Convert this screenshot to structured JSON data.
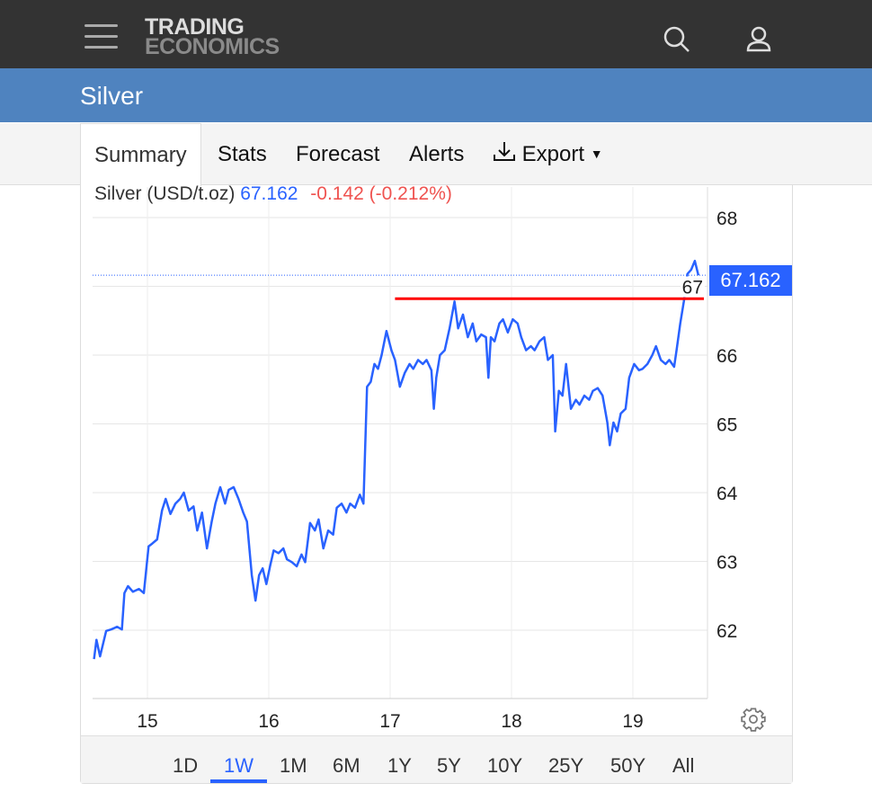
{
  "header": {
    "logo_line1": "TRADING",
    "logo_line2": "ECONOMICS"
  },
  "title": "Silver",
  "tabs": [
    "Summary",
    "Stats",
    "Forecast",
    "Alerts",
    "Export"
  ],
  "legend": {
    "name": "Silver (USD/t.oz)",
    "value": "67.162",
    "change": "-0.142 (-0.212%)"
  },
  "price_tag": "67.162",
  "ranges": [
    "1D",
    "1W",
    "1M",
    "6M",
    "1Y",
    "5Y",
    "10Y",
    "25Y",
    "50Y",
    "All"
  ],
  "active_range": "1W",
  "colors": {
    "line": "#2962ff",
    "level": "#ff0000",
    "down": "#ef5350"
  },
  "chart_data": {
    "type": "line",
    "title": "Silver (USD/t.oz)",
    "x_ticks": [
      "15",
      "16",
      "17",
      "18",
      "19"
    ],
    "x_tick_values": [
      15,
      16,
      17,
      18,
      19
    ],
    "y_ticks": [
      "62",
      "63",
      "64",
      "65",
      "66",
      "67",
      "68"
    ],
    "y_tick_values": [
      62,
      63,
      64,
      65,
      66,
      67,
      68
    ],
    "xlim": [
      14.55,
      19.6
    ],
    "ylim": [
      61.0,
      68.45
    ],
    "last_value": 67.162,
    "horizontal_line": {
      "value": 66.82,
      "from": 17.04,
      "to": 19.6
    },
    "series": [
      {
        "name": "Silver",
        "points": [
          [
            14.56,
            61.58
          ],
          [
            14.58,
            61.86
          ],
          [
            14.61,
            61.62
          ],
          [
            14.66,
            61.99
          ],
          [
            14.7,
            62.01
          ],
          [
            14.75,
            62.05
          ],
          [
            14.79,
            62.01
          ],
          [
            14.81,
            62.54
          ],
          [
            14.84,
            62.64
          ],
          [
            14.88,
            62.56
          ],
          [
            14.93,
            62.6
          ],
          [
            14.97,
            62.54
          ],
          [
            15.01,
            63.22
          ],
          [
            15.04,
            63.26
          ],
          [
            15.08,
            63.32
          ],
          [
            15.12,
            63.74
          ],
          [
            15.15,
            63.91
          ],
          [
            15.19,
            63.69
          ],
          [
            15.23,
            63.84
          ],
          [
            15.27,
            63.91
          ],
          [
            15.3,
            64.0
          ],
          [
            15.34,
            63.74
          ],
          [
            15.38,
            63.8
          ],
          [
            15.41,
            63.45
          ],
          [
            15.45,
            63.71
          ],
          [
            15.49,
            63.19
          ],
          [
            15.53,
            63.58
          ],
          [
            15.56,
            63.84
          ],
          [
            15.6,
            64.08
          ],
          [
            15.64,
            63.84
          ],
          [
            15.67,
            64.04
          ],
          [
            15.71,
            64.08
          ],
          [
            15.75,
            63.91
          ],
          [
            15.79,
            63.71
          ],
          [
            15.82,
            63.58
          ],
          [
            15.86,
            62.8
          ],
          [
            15.89,
            62.43
          ],
          [
            15.92,
            62.8
          ],
          [
            15.95,
            62.9
          ],
          [
            15.98,
            62.67
          ],
          [
            16.01,
            62.93
          ],
          [
            16.04,
            63.16
          ],
          [
            16.08,
            63.12
          ],
          [
            16.12,
            63.19
          ],
          [
            16.15,
            63.03
          ],
          [
            16.19,
            62.99
          ],
          [
            16.23,
            62.93
          ],
          [
            16.27,
            63.1
          ],
          [
            16.3,
            62.99
          ],
          [
            16.34,
            63.56
          ],
          [
            16.38,
            63.45
          ],
          [
            16.41,
            63.61
          ],
          [
            16.45,
            63.19
          ],
          [
            16.49,
            63.45
          ],
          [
            16.53,
            63.39
          ],
          [
            16.56,
            63.78
          ],
          [
            16.6,
            63.84
          ],
          [
            16.64,
            63.71
          ],
          [
            16.67,
            63.84
          ],
          [
            16.71,
            63.78
          ],
          [
            16.75,
            63.97
          ],
          [
            16.78,
            63.84
          ],
          [
            16.81,
            65.54
          ],
          [
            16.84,
            65.61
          ],
          [
            16.87,
            65.87
          ],
          [
            16.9,
            65.8
          ],
          [
            16.93,
            66.0
          ],
          [
            16.97,
            66.35
          ],
          [
            17.01,
            66.07
          ],
          [
            17.04,
            65.93
          ],
          [
            17.08,
            65.54
          ],
          [
            17.12,
            65.74
          ],
          [
            17.16,
            65.87
          ],
          [
            17.19,
            65.8
          ],
          [
            17.23,
            65.93
          ],
          [
            17.27,
            65.87
          ],
          [
            17.3,
            65.93
          ],
          [
            17.34,
            65.78
          ],
          [
            17.36,
            65.22
          ],
          [
            17.38,
            65.67
          ],
          [
            17.41,
            66.0
          ],
          [
            17.45,
            66.07
          ],
          [
            17.49,
            66.39
          ],
          [
            17.53,
            66.78
          ],
          [
            17.56,
            66.39
          ],
          [
            17.6,
            66.59
          ],
          [
            17.64,
            66.26
          ],
          [
            17.68,
            66.46
          ],
          [
            17.71,
            66.2
          ],
          [
            17.75,
            66.3
          ],
          [
            17.79,
            66.26
          ],
          [
            17.81,
            65.67
          ],
          [
            17.83,
            66.26
          ],
          [
            17.86,
            66.2
          ],
          [
            17.9,
            66.46
          ],
          [
            17.93,
            66.52
          ],
          [
            17.97,
            66.33
          ],
          [
            18.01,
            66.52
          ],
          [
            18.05,
            66.46
          ],
          [
            18.08,
            66.26
          ],
          [
            18.12,
            66.07
          ],
          [
            18.16,
            66.13
          ],
          [
            18.19,
            66.07
          ],
          [
            18.23,
            66.2
          ],
          [
            18.27,
            66.26
          ],
          [
            18.3,
            65.93
          ],
          [
            18.34,
            66.0
          ],
          [
            18.36,
            64.89
          ],
          [
            18.39,
            65.48
          ],
          [
            18.42,
            65.41
          ],
          [
            18.45,
            65.87
          ],
          [
            18.49,
            65.22
          ],
          [
            18.53,
            65.35
          ],
          [
            18.56,
            65.28
          ],
          [
            18.6,
            65.41
          ],
          [
            18.64,
            65.35
          ],
          [
            18.67,
            65.48
          ],
          [
            18.71,
            65.52
          ],
          [
            18.75,
            65.41
          ],
          [
            18.79,
            65.02
          ],
          [
            18.81,
            64.69
          ],
          [
            18.84,
            65.02
          ],
          [
            18.87,
            64.89
          ],
          [
            18.9,
            65.15
          ],
          [
            18.94,
            65.22
          ],
          [
            18.97,
            65.67
          ],
          [
            19.01,
            65.87
          ],
          [
            19.05,
            65.78
          ],
          [
            19.08,
            65.8
          ],
          [
            19.12,
            65.87
          ],
          [
            19.16,
            66.0
          ],
          [
            19.19,
            66.13
          ],
          [
            19.23,
            65.93
          ],
          [
            19.27,
            65.87
          ],
          [
            19.3,
            65.93
          ],
          [
            19.34,
            65.83
          ],
          [
            19.36,
            66.07
          ],
          [
            19.39,
            66.46
          ],
          [
            19.42,
            66.78
          ],
          [
            19.45,
            67.18
          ],
          [
            19.48,
            67.24
          ],
          [
            19.51,
            67.37
          ],
          [
            19.54,
            67.16
          ]
        ]
      }
    ]
  }
}
